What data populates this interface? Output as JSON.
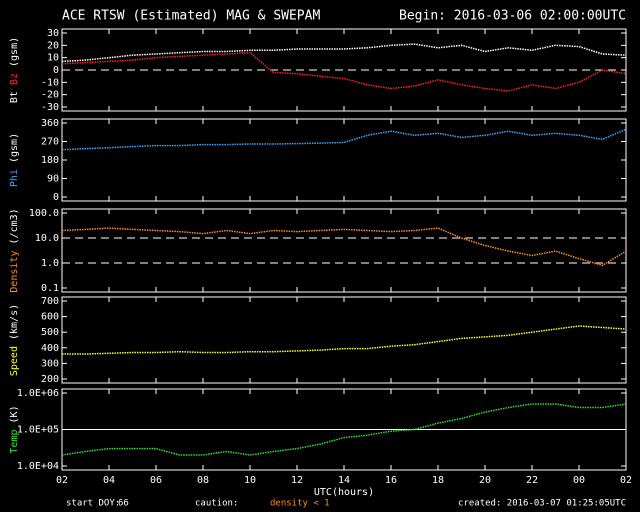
{
  "header": {
    "title": "ACE RTSW (Estimated) MAG & SWEPAM",
    "begin": "Begin: 2016-03-06 02:00:00UTC"
  },
  "footer": {
    "start_doy_label": "start DOY:",
    "start_doy": 66,
    "caution": "caution:",
    "caution_note": "density < 1",
    "created": "created: 2016-03-07 01:25:05UTC"
  },
  "chart_data": [
    {
      "type": "line",
      "ylabel": "(gsm)",
      "xlim": [
        0,
        24
      ],
      "ylim": [
        -30,
        30
      ],
      "yticks": [
        30,
        20,
        10,
        0,
        -10,
        -20,
        -30
      ],
      "hlines": [
        {
          "value": 0,
          "style": "dashed"
        }
      ],
      "x": [
        0,
        1,
        2,
        3,
        4,
        5,
        6,
        7,
        8,
        9,
        10,
        11,
        12,
        13,
        14,
        15,
        16,
        17,
        18,
        19,
        20,
        21,
        22,
        23,
        24
      ],
      "series": [
        {
          "name": "Bt",
          "color": "#ffffff",
          "values": [
            7,
            8,
            10,
            12,
            13,
            14,
            15,
            15,
            16,
            16,
            17,
            17,
            17,
            18,
            20,
            21,
            18,
            20,
            15,
            18,
            16,
            20,
            19,
            13,
            12
          ]
        },
        {
          "name": "Bz",
          "color": "#ff2020",
          "values": [
            5,
            6,
            7,
            8,
            10,
            11,
            12,
            13,
            14,
            -2,
            -3,
            -5,
            -7,
            -12,
            -15,
            -13,
            -8,
            -12,
            -15,
            -17,
            -12,
            -15,
            -10,
            0,
            -3
          ]
        }
      ]
    },
    {
      "type": "line",
      "ylabel": "(gsm)",
      "xlim": [
        0,
        24
      ],
      "ylim": [
        0,
        360
      ],
      "yticks": [
        360,
        270,
        180,
        90,
        0
      ],
      "x": [
        0,
        1,
        2,
        3,
        4,
        5,
        6,
        7,
        8,
        9,
        10,
        11,
        12,
        13,
        14,
        15,
        16,
        17,
        18,
        19,
        20,
        21,
        22,
        23,
        24
      ],
      "series": [
        {
          "name": "Phi",
          "color": "#3aa8ff",
          "values": [
            230,
            235,
            240,
            245,
            250,
            250,
            255,
            255,
            258,
            258,
            260,
            262,
            265,
            300,
            320,
            300,
            310,
            290,
            300,
            320,
            300,
            310,
            300,
            280,
            330
          ]
        }
      ]
    },
    {
      "type": "line",
      "ylabel": "(/cm3)",
      "log": true,
      "xlim": [
        0,
        24
      ],
      "ylim": [
        0.1,
        100
      ],
      "yticks": [
        {
          "value": 100,
          "label": "100.0"
        },
        {
          "value": 10,
          "label": "10.0"
        },
        {
          "value": 1,
          "label": "1.0"
        },
        0.1
      ],
      "hlines": [
        {
          "value": 10,
          "style": "dashed"
        },
        {
          "value": 1,
          "style": "dashed"
        }
      ],
      "x": [
        0,
        1,
        2,
        3,
        4,
        5,
        6,
        7,
        8,
        9,
        10,
        11,
        12,
        13,
        14,
        15,
        16,
        17,
        18,
        19,
        20,
        21,
        22,
        23,
        24
      ],
      "series": [
        {
          "name": "Density",
          "color": "#ff8c20",
          "values": [
            20,
            22,
            25,
            22,
            20,
            18,
            15,
            20,
            15,
            20,
            18,
            20,
            22,
            20,
            18,
            20,
            25,
            10,
            5,
            3,
            2,
            3,
            1.5,
            0.8,
            3
          ]
        }
      ]
    },
    {
      "type": "line",
      "ylabel": "(km/s)",
      "xlim": [
        0,
        24
      ],
      "ylim": [
        200,
        700
      ],
      "yticks": [
        700,
        600,
        500,
        400,
        300,
        200
      ],
      "x": [
        0,
        1,
        2,
        3,
        4,
        5,
        6,
        7,
        8,
        9,
        10,
        11,
        12,
        13,
        14,
        15,
        16,
        17,
        18,
        19,
        20,
        21,
        22,
        23,
        24
      ],
      "series": [
        {
          "name": "Speed",
          "color": "#ffff30",
          "values": [
            360,
            360,
            365,
            370,
            370,
            375,
            370,
            370,
            375,
            375,
            380,
            385,
            395,
            395,
            410,
            420,
            440,
            460,
            470,
            480,
            500,
            520,
            540,
            530,
            520
          ]
        }
      ]
    },
    {
      "type": "line",
      "ylabel": "(K)",
      "log": true,
      "xlim": [
        0,
        24
      ],
      "ylim": [
        10000,
        1000000
      ],
      "xlabel": "UTC(hours)",
      "yticks": [
        {
          "value": 1000000,
          "label": "1.0E+06"
        },
        {
          "value": 100000,
          "label": "1.0E+05"
        },
        {
          "value": 10000,
          "label": "1.0E+04"
        }
      ],
      "hlines": [
        {
          "value": 100000,
          "style": "solid"
        }
      ],
      "xticks": [
        {
          "value": 0,
          "label": "02"
        },
        {
          "value": 2,
          "label": "04"
        },
        {
          "value": 4,
          "label": "06"
        },
        {
          "value": 6,
          "label": "08"
        },
        {
          "value": 8,
          "label": "10"
        },
        {
          "value": 10,
          "label": "12"
        },
        {
          "value": 12,
          "label": "14"
        },
        {
          "value": 14,
          "label": "16"
        },
        {
          "value": 16,
          "label": "18"
        },
        {
          "value": 18,
          "label": "20"
        },
        {
          "value": 20,
          "label": "22"
        },
        {
          "value": 22,
          "label": "00"
        },
        {
          "value": 24,
          "label": "02"
        }
      ],
      "x": [
        0,
        1,
        2,
        3,
        4,
        5,
        6,
        7,
        8,
        9,
        10,
        11,
        12,
        13,
        14,
        15,
        16,
        17,
        18,
        19,
        20,
        21,
        22,
        23,
        24
      ],
      "series": [
        {
          "name": "Temp",
          "color": "#30e030",
          "values": [
            20000,
            25000,
            30000,
            30000,
            30000,
            20000,
            20000,
            25000,
            20000,
            25000,
            30000,
            40000,
            60000,
            70000,
            90000,
            100000,
            150000,
            200000,
            300000,
            400000,
            500000,
            500000,
            400000,
            400000,
            500000
          ]
        }
      ]
    }
  ]
}
